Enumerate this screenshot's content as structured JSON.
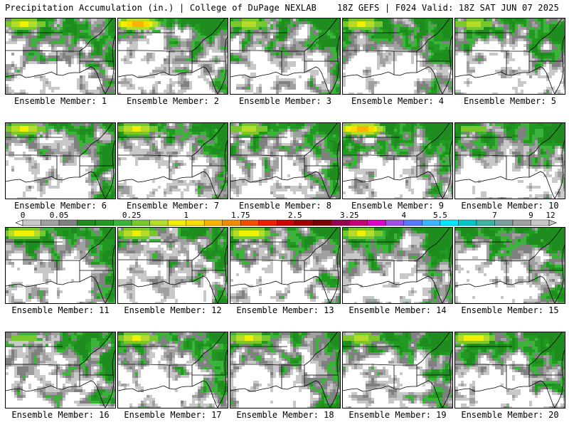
{
  "header": {
    "left": "Precipitation Accumulation (in.) | College of DuPage NEXLAB",
    "right": "18Z GEFS | F024 Valid: 18Z SAT JUN 07 2025"
  },
  "members": [
    "Ensemble Member: 1",
    "Ensemble Member: 2",
    "Ensemble Member: 3",
    "Ensemble Member: 4",
    "Ensemble Member: 5",
    "Ensemble Member: 6",
    "Ensemble Member: 7",
    "Ensemble Member: 8",
    "Ensemble Member: 9",
    "Ensemble Member: 10",
    "Ensemble Member: 11",
    "Ensemble Member: 12",
    "Ensemble Member: 13",
    "Ensemble Member: 14",
    "Ensemble Member: 15",
    "Ensemble Member: 16",
    "Ensemble Member: 17",
    "Ensemble Member: 18",
    "Ensemble Member: 19",
    "Ensemble Member: 20"
  ],
  "max_intensity": [
    3,
    6,
    2,
    3,
    2,
    3,
    3,
    2,
    6,
    1,
    4,
    3,
    4,
    3,
    0,
    1,
    3,
    3,
    2,
    4
  ],
  "legend": {
    "tick_labels": [
      "0",
      "0.05",
      "0.25",
      "1",
      "1.75",
      "2.5",
      "3.25",
      "4",
      "5.5",
      "7",
      "9",
      "12"
    ],
    "colors": [
      "#c8c8c8",
      "#a0a0a0",
      "#808080",
      "#1e8c1e",
      "#229a22",
      "#3cb43c",
      "#78c82d",
      "#b4dc28",
      "#f0f000",
      "#fadc00",
      "#fab400",
      "#f08c00",
      "#f05000",
      "#f01e00",
      "#d20000",
      "#a00000",
      "#7a0000",
      "#960050",
      "#c80078",
      "#e100c8",
      "#a050e6",
      "#5a78ff",
      "#3cb4ff",
      "#00e6ff",
      "#00c8c8",
      "#3cb4a0",
      "#7aa0a0",
      "#a0a0a0",
      "#c8c8c8"
    ]
  }
}
